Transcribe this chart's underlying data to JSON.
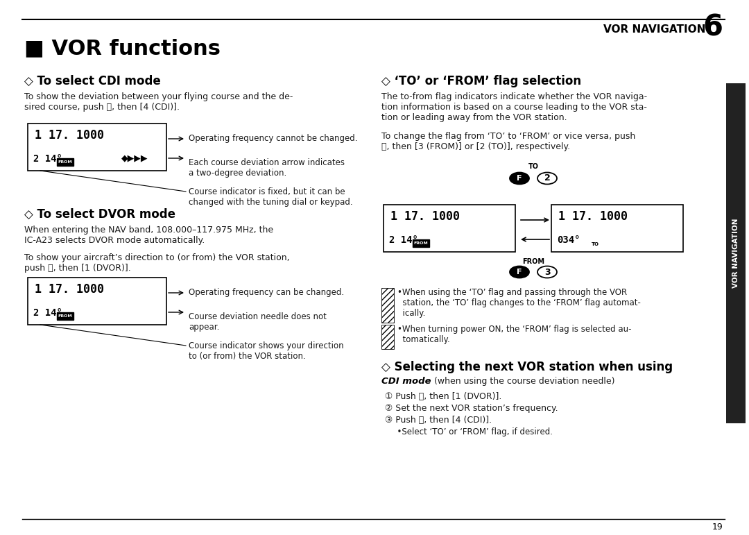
{
  "page_bg": "#ffffff",
  "text_color": "#1a1a1a",
  "dark_color": "#111111",
  "sidebar_color": "#222222",
  "sidebar_text": "VOR NAVIGATION",
  "page_num": "19",
  "page_header": "VOR NAVIGATION",
  "page_number_big": "6",
  "main_title": "■ VOR functions",
  "s1_head": "◇ To select CDI mode",
  "s1_body": [
    "To show the deviation between your flying course and the de-",
    "sired course, push Ⓕ, then [4 (CDI)]."
  ],
  "s1_disp_row1": "1 17. 1000",
  "s1_disp_row2": "2 14°",
  "s1_disp_from": "FROM",
  "s1_disp_arrows": "◆▶▶▶",
  "s1_note1": "Operating frequency cannot be changed.",
  "s1_note2": "Each course deviation arrow indicates\na two-degree deviation.",
  "s1_note3": "Course indicator is fixed, but it can be\nchanged with the tuning dial or keypad.",
  "s2_head": "◇ To select DVOR mode",
  "s2_body": [
    "When entering the NAV band, 108.000–117.975 MHz, the",
    "IC-A23 selects DVOR mode automatically."
  ],
  "s2_body2": [
    "To show your aircraft’s direction to (or from) the VOR station,",
    "push Ⓕ, then [1 (DVOR)]."
  ],
  "s2_disp_row1": "1 17. 1000",
  "s2_disp_row2": "2 14°",
  "s2_disp_from": "FROM",
  "s2_note1": "Operating frequency can be changed.",
  "s2_note2": "Course deviation needle does not\nappear.",
  "s2_note3": "Course indicator shows your direction\nto (or from) the VOR station.",
  "s3_head": "◇ ‘TO’ or ‘FROM’ flag selection",
  "s3_body": [
    "The to-from flag indicators indicate whether the VOR naviga-",
    "tion information is based on a course leading to the VOR sta-",
    "tion or leading away from the VOR station."
  ],
  "s3_body2": [
    "To change the flag from ‘TO’ to ‘FROM’ or vice versa, push",
    "Ⓕ, then [3 (FROM)] or [2 (TO)], respectively."
  ],
  "s3_disp1_r1": "1 17. 1000",
  "s3_disp1_r2": "2 14°",
  "s3_disp1_from": "FROM",
  "s3_disp2_r1": "1 17. 1000",
  "s3_disp2_r2": "034°",
  "s3_disp2_to": "TO",
  "s3_btn_to_label": "TO",
  "s3_btn_from_label": "FROM",
  "s3_note1": "•When using the ‘TO’ flag and passing through the VOR\n  station, the ‘TO’ flag changes to the ‘FROM’ flag automat-\n  ically.",
  "s3_note2": "•When turning power ON, the ‘FROM’ flag is selected au-\n  tomatically.",
  "s4_head": "◇ Selecting the next VOR station when using",
  "s4_subhead_bold": "CDI mode",
  "s4_subhead_rest": " (when using the course deviation needle)",
  "s4_step1": "① Push Ⓕ, then [1 (DVOR)].",
  "s4_step2": "② Set the next VOR station’s frequency.",
  "s4_step3": "③ Push Ⓕ, then [4 (CDI)].",
  "s4_step4": "  •Select ‘TO’ or ‘FROM’ flag, if desired."
}
